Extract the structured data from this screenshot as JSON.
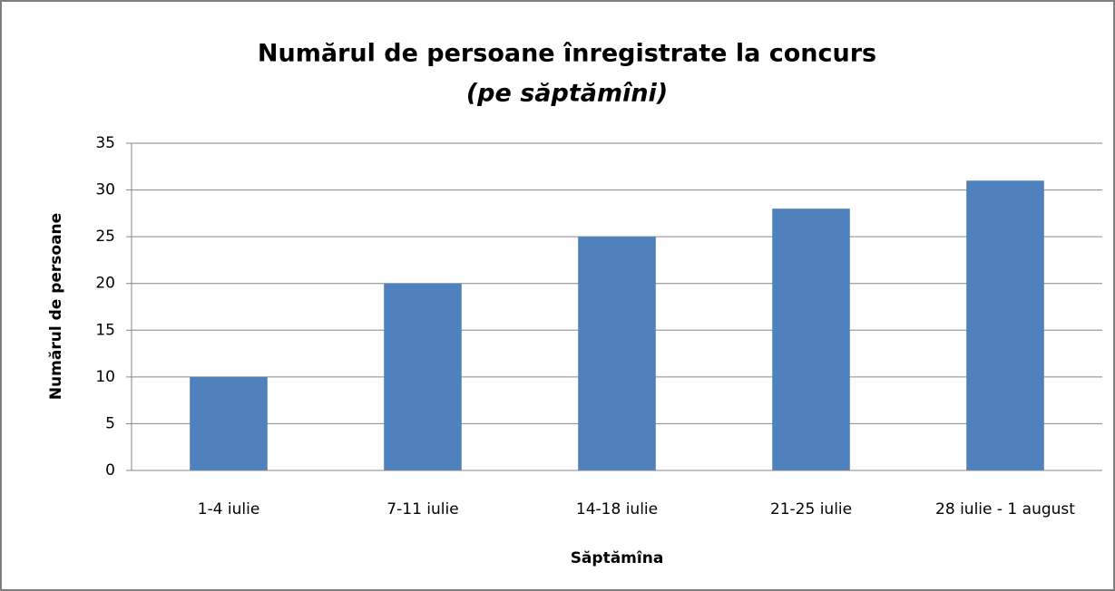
{
  "chart_data": {
    "type": "bar",
    "title": "Numărul de persoane înregistrate la concurs",
    "subtitle": "(pe săptămîni)",
    "x_label": "Săptămîna",
    "y_label": "Numărul de persoane",
    "categories": [
      "1-4 iulie",
      "7-11 iulie",
      "14-18 iulie",
      "21-25 iulie",
      "28 iulie - 1 august"
    ],
    "values": [
      10,
      20,
      25,
      28,
      31
    ],
    "color": "#4f81bd",
    "ylim": [
      0,
      35
    ],
    "yticks": [
      0,
      5,
      10,
      15,
      20,
      25,
      30,
      35
    ],
    "grid": true
  }
}
